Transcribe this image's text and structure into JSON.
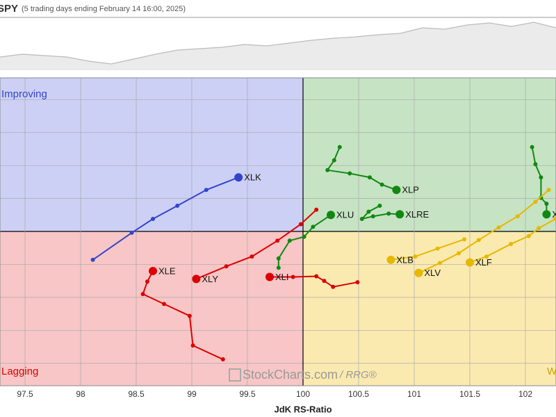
{
  "header": {
    "title": "SPY",
    "subtitle": "(5 trading days ending February 14 16:00, 2025)"
  },
  "chart_data": [
    {
      "type": "line",
      "color": "#bbbbbb",
      "ylim": [
        598,
        612
      ],
      "values": [
        601.36,
        602.11,
        601.73,
        601.36,
        600.24,
        599.49,
        600.8,
        602.11,
        603.23,
        603.6,
        603.97,
        604.72,
        604.35,
        605.09,
        605.84,
        606.4,
        606.77,
        607.33,
        607.71,
        609.2,
        608.83,
        609.95,
        610.51,
        609.57,
        610.69,
        609.2
      ]
    },
    {
      "type": "rrg",
      "xlabel": "JdK RS-Ratio",
      "quadrants": {
        "improving": "Improving",
        "lagging": "Lagging",
        "weakening": "Weakening"
      },
      "watermark": {
        "brand": "StockCharts.com",
        "suffix": "/ RRG®"
      },
      "xlim": [
        97.275,
        102.275
      ],
      "ylim": [
        97.66,
        102.33
      ],
      "xticks": [
        97.5,
        98,
        98.5,
        99,
        99.5,
        100,
        100.5,
        101,
        101.5,
        102
      ],
      "yticks": [
        98,
        98.5,
        99,
        99.5,
        100,
        100.5,
        101,
        101.5,
        102
      ],
      "series": [
        {
          "name": "XLK",
          "color": "#3344cc",
          "x": [
            98.11,
            98.46,
            98.65,
            98.87,
            99.13,
            99.42
          ],
          "y": [
            99.57,
            99.98,
            100.19,
            100.39,
            100.63,
            100.82
          ]
        },
        {
          "name": "XLE",
          "color": "#dd0000",
          "x": [
            99.28,
            99.01,
            98.98,
            98.75,
            98.56,
            98.6,
            98.65
          ],
          "y": [
            98.06,
            98.27,
            98.72,
            98.9,
            99.05,
            99.24,
            99.4
          ]
        },
        {
          "name": "XLY",
          "color": "#dd0000",
          "x": [
            100.12,
            99.98,
            99.77,
            99.54,
            99.31,
            99.04
          ],
          "y": [
            100.33,
            100.11,
            99.86,
            99.62,
            99.47,
            99.28
          ]
        },
        {
          "name": "XLI",
          "color": "#dd0000",
          "x": [
            100.49,
            100.27,
            100.19,
            100.12,
            99.91,
            99.7
          ],
          "y": [
            99.23,
            99.16,
            99.25,
            99.32,
            99.31,
            99.31
          ]
        },
        {
          "name": "XLU",
          "color": "#118811",
          "x": [
            99.78,
            99.78,
            99.88,
            100.01,
            100.09,
            100.25
          ],
          "y": [
            99.45,
            99.59,
            99.86,
            99.92,
            100.07,
            100.25
          ]
        },
        {
          "name": "XLP",
          "color": "#118811",
          "x": [
            100.33,
            100.28,
            100.22,
            100.42,
            100.6,
            100.71,
            100.84
          ],
          "y": [
            101.28,
            101.08,
            100.93,
            100.88,
            100.82,
            100.71,
            100.63
          ]
        },
        {
          "name": "XLRE",
          "color": "#118811",
          "x": [
            100.69,
            100.59,
            100.53,
            100.63,
            100.77,
            100.87
          ],
          "y": [
            100.39,
            100.3,
            100.19,
            100.23,
            100.27,
            100.26
          ]
        },
        {
          "name": "XLC",
          "color": "#118811",
          "x": [
            102.06,
            102.09,
            102.14,
            102.14,
            102.19,
            102.19
          ],
          "y": [
            101.28,
            101.02,
            100.82,
            100.51,
            100.42,
            100.26
          ]
        },
        {
          "name": "XLV",
          "color": "#e6b800",
          "x": [
            102.21,
            102.09,
            101.93,
            101.76,
            101.58,
            101.4,
            101.23,
            101.04
          ],
          "y": [
            100.63,
            100.45,
            100.23,
            100.06,
            99.87,
            99.67,
            99.52,
            99.37
          ]
        },
        {
          "name": "XLF",
          "color": "#e6b800",
          "x": [
            102.27,
            102.12,
            102.03,
            101.87,
            101.65,
            101.5
          ],
          "y": [
            100.19,
            100.05,
            99.93,
            99.81,
            99.62,
            99.53
          ]
        },
        {
          "name": "XLB",
          "color": "#e6b800",
          "x": [
            101.45,
            101.21,
            101.01,
            100.79
          ],
          "y": [
            99.88,
            99.74,
            99.62,
            99.57
          ]
        }
      ]
    }
  ]
}
